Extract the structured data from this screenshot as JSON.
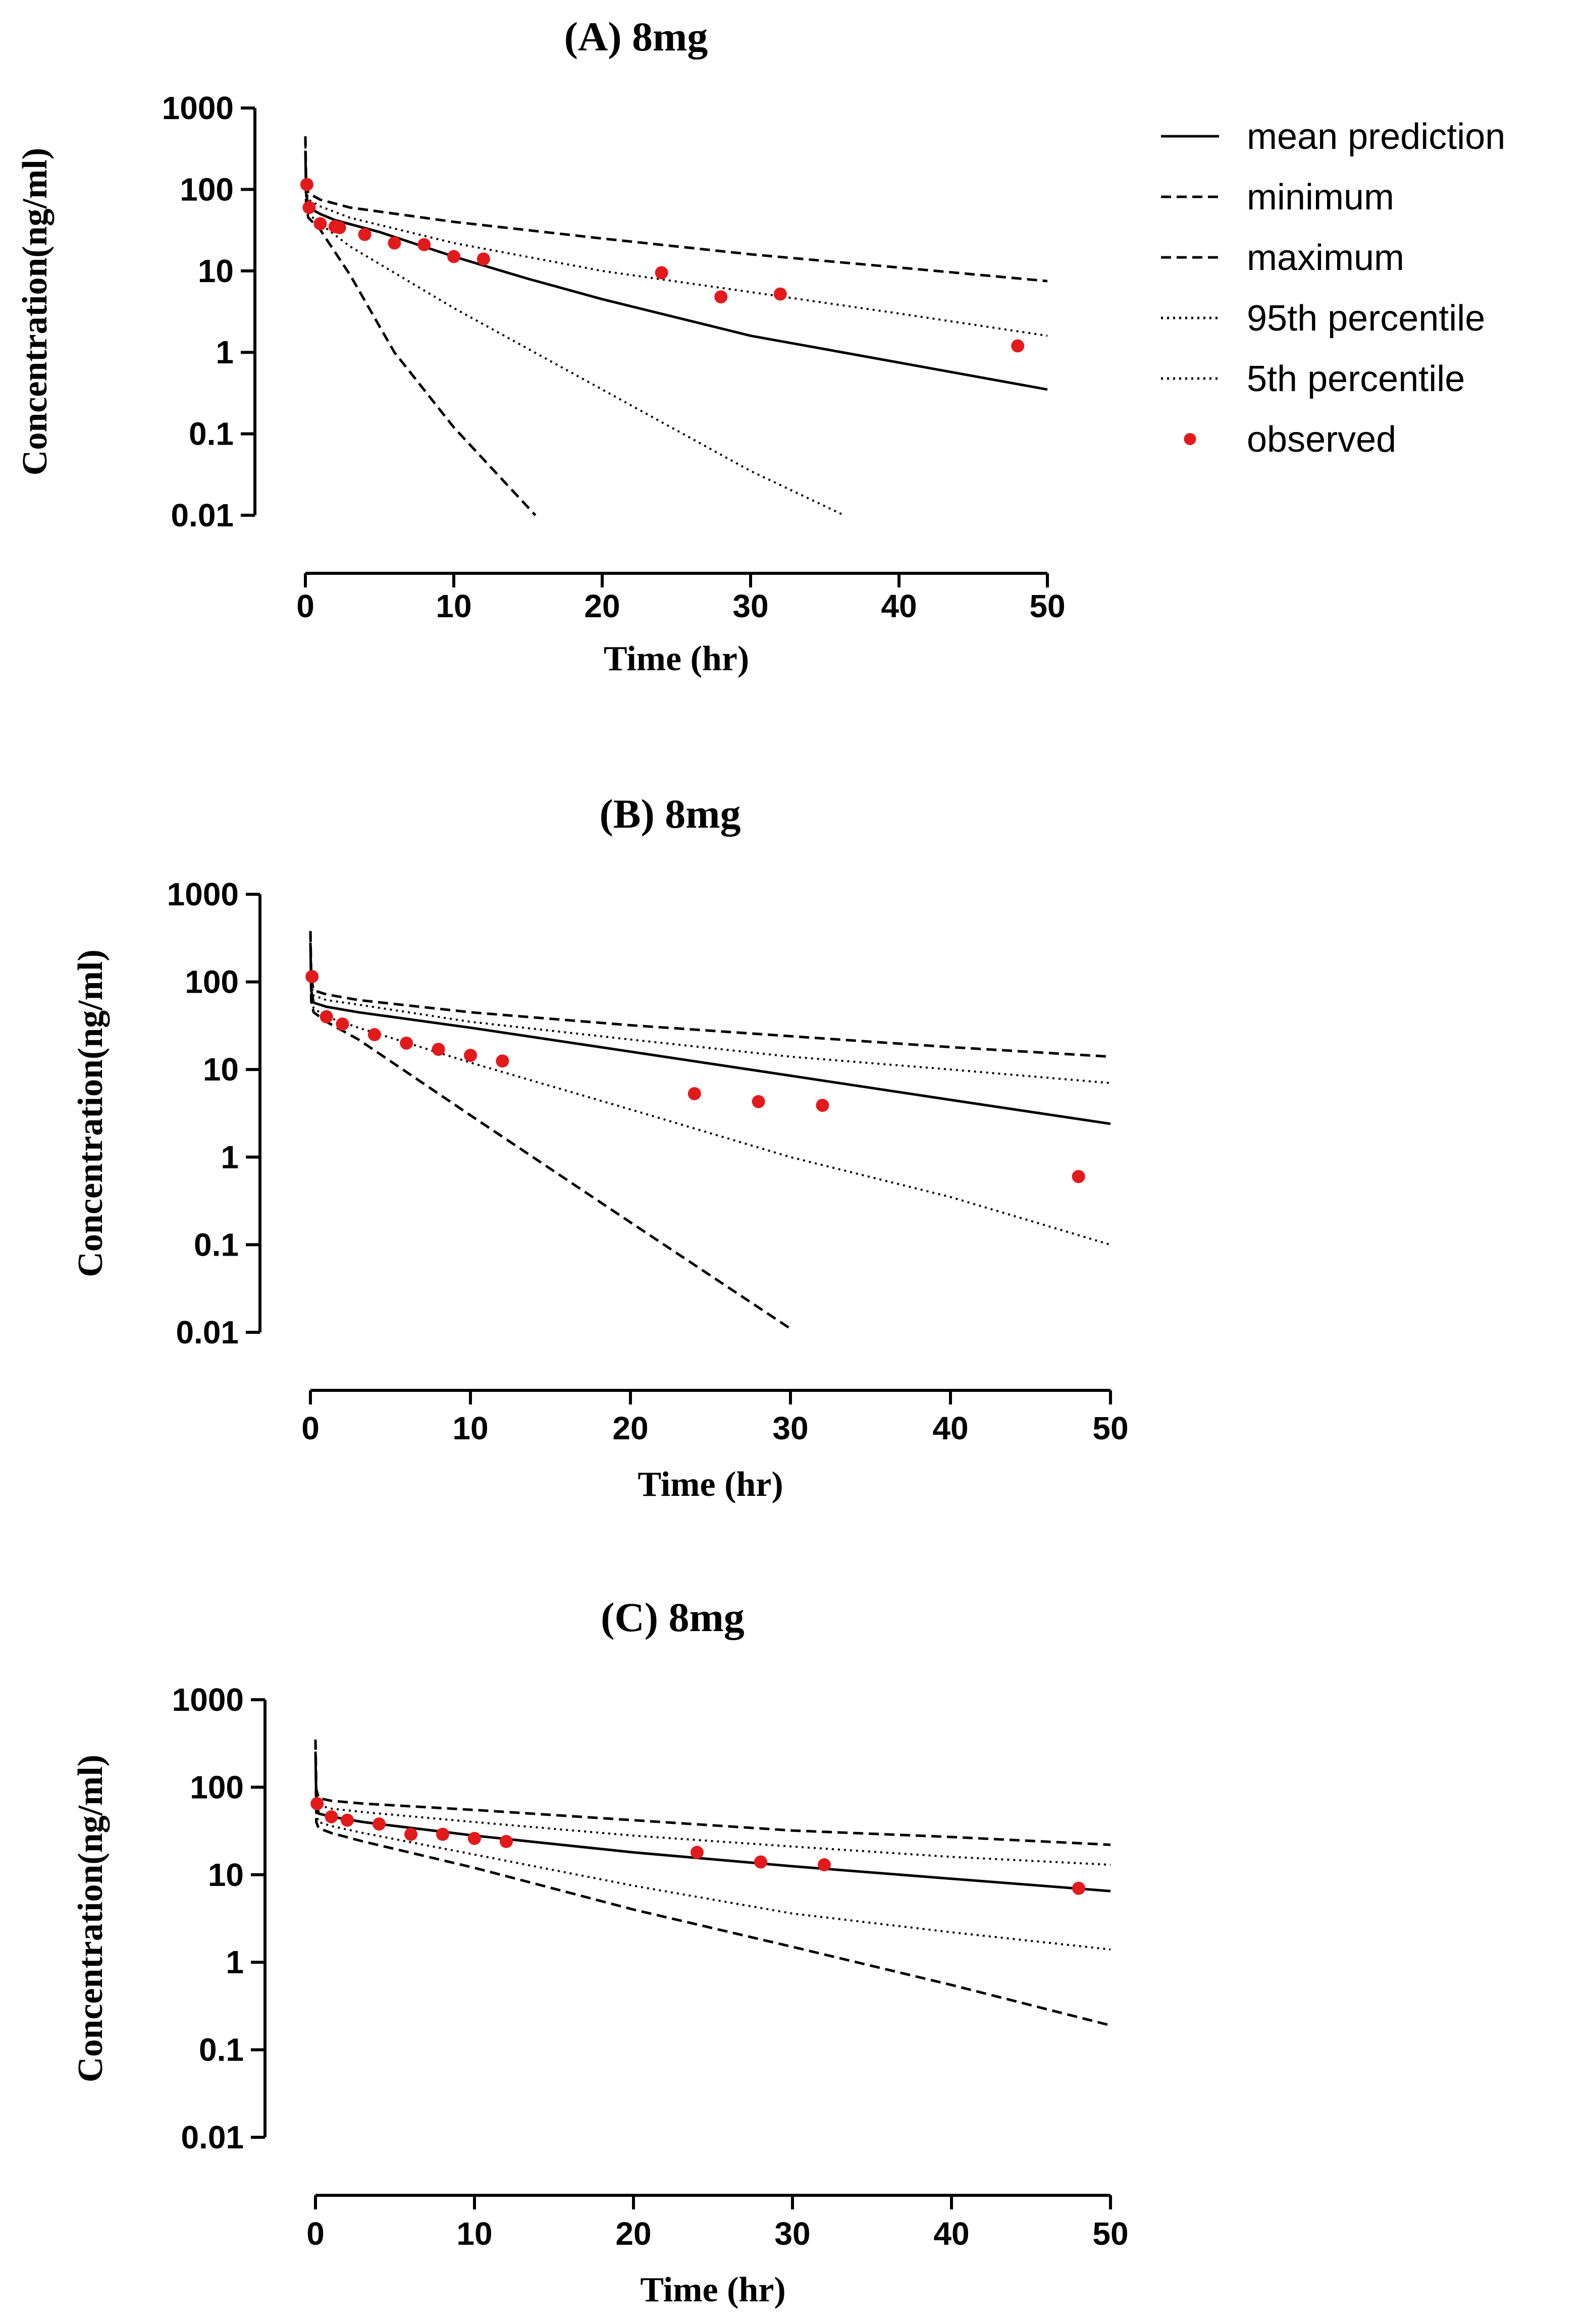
{
  "legend": {
    "items": [
      {
        "key": "mean",
        "label": "mean prediction",
        "style": "solid"
      },
      {
        "key": "min",
        "label": "minimum",
        "style": "dashed"
      },
      {
        "key": "max",
        "label": "maximum",
        "style": "dashed"
      },
      {
        "key": "p95",
        "label": "95th percentile",
        "style": "dotted"
      },
      {
        "key": "p5",
        "label": "5th percentile",
        "style": "dotted"
      },
      {
        "key": "obs",
        "label": "observed",
        "style": "marker"
      }
    ],
    "marker_color": "#e31a1c"
  },
  "chart_data": [
    {
      "type": "line",
      "title": "(A) 8mg",
      "xlabel": "Time (hr)",
      "ylabel": "Concentration(ng/ml)",
      "xlim": [
        0,
        50
      ],
      "ylim": [
        0.01,
        1000
      ],
      "yscale": "log",
      "x_ticks": [
        "0",
        "10",
        "20",
        "30",
        "40",
        "50"
      ],
      "y_ticks": [
        "0.01",
        "0.1",
        "1",
        "10",
        "100",
        "1000"
      ],
      "series": [
        {
          "name": "mean prediction",
          "style": "solid",
          "x": [
            0,
            0.05,
            0.2,
            1,
            2,
            5,
            10,
            15,
            20,
            30,
            40,
            50
          ],
          "y": [
            300,
            90,
            60,
            50,
            42,
            30,
            15,
            8,
            4.5,
            1.6,
            0.75,
            0.35
          ]
        },
        {
          "name": "minimum",
          "style": "dashed",
          "x": [
            0,
            0.05,
            0.2,
            1,
            3,
            6,
            10,
            15.5
          ],
          "y": [
            450,
            60,
            45,
            32,
            9,
            1,
            0.12,
            0.01
          ]
        },
        {
          "name": "maximum",
          "style": "dashed",
          "x": [
            0,
            0.05,
            0.2,
            1,
            3,
            10,
            20,
            30,
            40,
            50
          ],
          "y": [
            450,
            120,
            90,
            75,
            60,
            40,
            25,
            16,
            11,
            7.5
          ]
        },
        {
          "name": "95th percentile",
          "style": "dotted",
          "x": [
            0,
            0.05,
            0.2,
            1,
            3,
            10,
            20,
            30,
            40,
            50
          ],
          "y": [
            400,
            100,
            75,
            62,
            45,
            22,
            10,
            5.5,
            3,
            1.6
          ]
        },
        {
          "name": "5th percentile",
          "style": "dotted",
          "x": [
            0,
            0.05,
            0.2,
            1,
            3,
            10,
            20,
            30,
            36.3
          ],
          "y": [
            400,
            65,
            50,
            38,
            20,
            3.5,
            0.35,
            0.035,
            0.01
          ]
        }
      ],
      "observed": {
        "x": [
          0.1,
          0.25,
          1,
          2,
          2.3,
          4,
          6,
          8,
          10,
          12,
          24,
          28,
          32,
          48
        ],
        "y": [
          115,
          60,
          38,
          35,
          34,
          28,
          22,
          21,
          15,
          14,
          9.5,
          4.8,
          5.2,
          1.2
        ]
      }
    },
    {
      "type": "line",
      "title": "(B) 8mg",
      "xlabel": "Time (hr)",
      "ylabel": "Concentration(ng/ml)",
      "xlim": [
        0,
        50
      ],
      "ylim": [
        0.01,
        1000
      ],
      "yscale": "log",
      "x_ticks": [
        "0",
        "10",
        "20",
        "30",
        "40",
        "50"
      ],
      "y_ticks": [
        "0.01",
        "0.1",
        "1",
        "10",
        "100",
        "1000"
      ],
      "series": [
        {
          "name": "mean prediction",
          "style": "solid",
          "x": [
            0,
            0.05,
            0.2,
            1,
            3,
            10,
            20,
            30,
            40,
            50
          ],
          "y": [
            280,
            80,
            58,
            52,
            45,
            30,
            16,
            8.5,
            4.5,
            2.4
          ]
        },
        {
          "name": "minimum",
          "style": "dashed",
          "x": [
            0,
            0.05,
            0.2,
            1,
            3,
            10,
            20,
            30
          ],
          "y": [
            380,
            60,
            45,
            35,
            22,
            3,
            0.18,
            0.011
          ]
        },
        {
          "name": "maximum",
          "style": "dashed",
          "x": [
            0,
            0.05,
            0.2,
            1,
            3,
            10,
            20,
            30,
            40,
            50
          ],
          "y": [
            380,
            110,
            80,
            72,
            62,
            45,
            32,
            24,
            18,
            14
          ]
        },
        {
          "name": "95th percentile",
          "style": "dotted",
          "x": [
            0,
            0.05,
            0.2,
            1,
            3,
            10,
            20,
            30,
            40,
            50
          ],
          "y": [
            350,
            95,
            70,
            62,
            55,
            35,
            22,
            14,
            10,
            7
          ]
        },
        {
          "name": "5th percentile",
          "style": "dotted",
          "x": [
            0,
            0.05,
            0.2,
            1,
            3,
            10,
            20,
            30,
            40,
            50
          ],
          "y": [
            350,
            65,
            50,
            40,
            30,
            12,
            3.5,
            1,
            0.35,
            0.1
          ]
        }
      ],
      "observed": {
        "x": [
          0.1,
          1,
          2,
          4,
          6,
          8,
          10,
          12,
          24,
          28,
          32,
          48
        ],
        "y": [
          115,
          40,
          33,
          25,
          20,
          17,
          14.5,
          12.5,
          5.3,
          4.3,
          3.9,
          0.6
        ]
      }
    },
    {
      "type": "line",
      "title": "(C) 8mg",
      "xlabel": "Time (hr)",
      "ylabel": "Concentration(ng/ml)",
      "xlim": [
        0,
        50
      ],
      "ylim": [
        0.01,
        1000
      ],
      "yscale": "log",
      "x_ticks": [
        "0",
        "10",
        "20",
        "30",
        "40",
        "50"
      ],
      "y_ticks": [
        "0.01",
        "0.1",
        "1",
        "10",
        "100",
        "1000"
      ],
      "series": [
        {
          "name": "mean prediction",
          "style": "solid",
          "x": [
            0,
            0.05,
            0.2,
            1,
            3,
            10,
            20,
            30,
            40,
            50
          ],
          "y": [
            250,
            70,
            50,
            46,
            40,
            28,
            18,
            12.5,
            9,
            6.5
          ]
        },
        {
          "name": "minimum",
          "style": "dashed",
          "x": [
            0,
            0.05,
            0.2,
            1,
            3,
            10,
            20,
            30,
            40,
            50
          ],
          "y": [
            350,
            40,
            34,
            30,
            24,
            12,
            4,
            1.5,
            0.55,
            0.19
          ]
        },
        {
          "name": "maximum",
          "style": "dashed",
          "x": [
            0,
            0.05,
            0.2,
            1,
            3,
            10,
            20,
            30,
            40,
            50
          ],
          "y": [
            350,
            95,
            75,
            70,
            65,
            55,
            42,
            32,
            27,
            22
          ]
        },
        {
          "name": "95th percentile",
          "style": "dotted",
          "x": [
            0,
            0.05,
            0.2,
            1,
            3,
            10,
            20,
            30,
            40,
            50
          ],
          "y": [
            300,
            80,
            62,
            57,
            52,
            40,
            28,
            21,
            16,
            13
          ]
        },
        {
          "name": "5th percentile",
          "style": "dotted",
          "x": [
            0,
            0.05,
            0.2,
            1,
            3,
            10,
            20,
            30,
            40,
            50
          ],
          "y": [
            300,
            50,
            40,
            36,
            30,
            17,
            7.5,
            3.6,
            2.2,
            1.4
          ]
        }
      ],
      "observed": {
        "x": [
          0.1,
          1,
          2,
          4,
          6,
          8,
          10,
          12,
          24,
          28,
          32,
          48
        ],
        "y": [
          65,
          46,
          42,
          38,
          29,
          29,
          26,
          24,
          18,
          14,
          13,
          7
        ]
      }
    }
  ]
}
